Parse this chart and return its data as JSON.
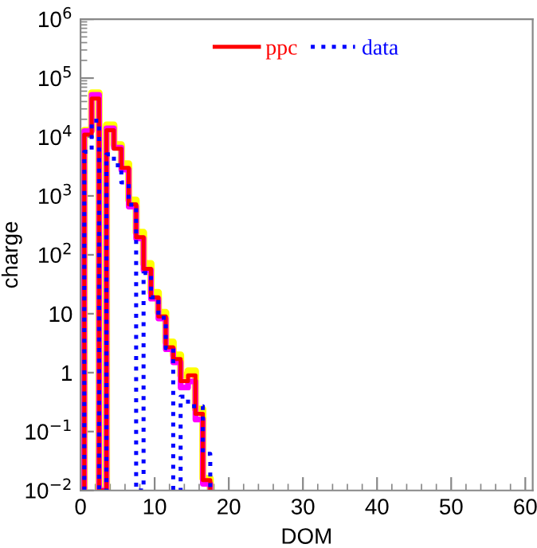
{
  "chart_data": {
    "type": "histogram",
    "xlabel": "DOM",
    "ylabel": "charge",
    "log": "y",
    "bins": [
      0.5,
      1.5,
      2.5,
      3.5,
      4.5,
      5.5,
      6.5,
      7.5,
      8.5,
      9.5,
      10.5,
      11.5,
      12.5,
      13.5,
      14.5,
      15.5,
      16.5,
      17.5
    ],
    "series": [
      {
        "color": "#ffff00",
        "line_style": "solid",
        "values": [
          13000,
          56000,
          null,
          16000,
          7400,
          3500,
          850,
          240,
          71,
          23,
          10.5,
          3.3,
          2,
          0.9,
          1.07,
          0.24,
          0.016
        ]
      },
      {
        "color": "#ff00ff",
        "line_style": "solid",
        "values": [
          12600,
          52000,
          null,
          14000,
          6600,
          2800,
          660,
          190,
          55,
          18,
          8.3,
          2.5,
          1.5,
          0.56,
          0.71,
          0.16,
          0.013
        ]
      },
      {
        "name": "ppc",
        "color": "#ff0000",
        "line_style": "solid",
        "values": [
          11000,
          45000,
          null,
          13000,
          6300,
          3000,
          720,
          200,
          58,
          19,
          9,
          2.7,
          1.7,
          0.72,
          0.9,
          0.2,
          0.015
        ]
      },
      {
        "name": "data",
        "color": "#0000ff",
        "line_style": "dotted",
        "values": [
          5600,
          19000,
          null,
          5100,
          3300,
          1700,
          710,
          null,
          49,
          19,
          8.5,
          2.6,
          null,
          0.39,
          0.27,
          0.27,
          0.042
        ]
      }
    ],
    "xlim": [
      0,
      61
    ],
    "xticks": [
      0,
      10,
      20,
      30,
      40,
      50,
      60
    ],
    "ylim": [
      0.01,
      1000000
    ],
    "yticks": [
      {
        "value": 0.01,
        "label": "10$^{−2}$"
      },
      {
        "value": 0.1,
        "label": "10$^{−1}$"
      },
      1,
      10,
      {
        "value": 100,
        "label": "10$^{2}$"
      },
      {
        "value": 1000,
        "label": "10$^{3}$"
      },
      {
        "value": 10000,
        "label": "10$^{4}$"
      },
      {
        "value": 100000,
        "label": "10$^{5}$"
      },
      {
        "value": 1000000,
        "label": "10$^{6}$"
      }
    ],
    "legend": "top",
    "grid": false
  }
}
